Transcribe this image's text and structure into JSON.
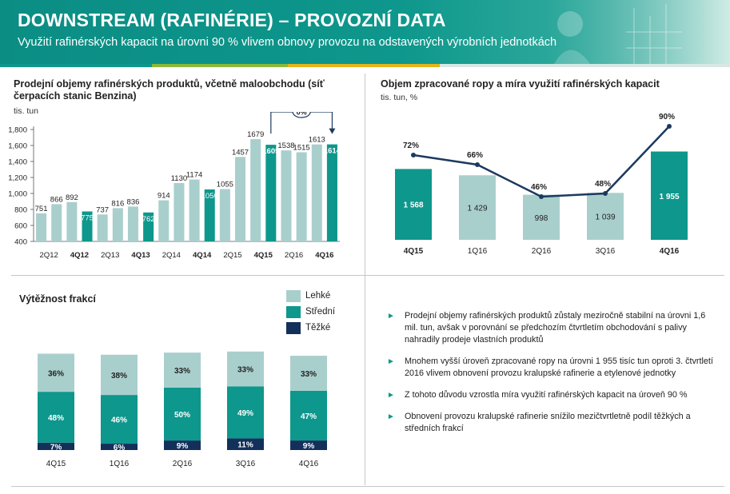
{
  "header": {
    "title": "DOWNSTREAM (RAFINÉRIE) – PROVOZNÍ DATA",
    "subtitle": "Využití rafinérských kapacit na úrovni 90 % vlivem obnovy provozu na odstavených výrobních jednotkách"
  },
  "colors": {
    "teal": "#0e978c",
    "light": "#a9cfcd",
    "navy": "#12305a",
    "line": "#1c3a5f",
    "stripe_green": "#8bb83a",
    "stripe_yellow": "#e6b51c"
  },
  "chart_data": [
    {
      "type": "bar",
      "title": "Prodejní objemy rafinérských produktů, včetně maloobchodu (síť čerpacích stanic Benzina)",
      "ylabel": "tis. tun",
      "ylim": [
        400,
        1800
      ],
      "yticks": [
        "400",
        "600",
        "800",
        "1,000",
        "1,200",
        "1,400",
        "1,600",
        "1,800"
      ],
      "grid": false,
      "values": [
        751,
        866,
        892,
        775,
        737,
        816,
        836,
        762,
        914,
        1130,
        1174,
        1050,
        1055,
        1457,
        1679,
        1609,
        1538,
        1515,
        1613,
        1614
      ],
      "highlight": [
        false,
        false,
        false,
        true,
        false,
        false,
        false,
        true,
        false,
        false,
        false,
        true,
        false,
        false,
        false,
        true,
        false,
        false,
        false,
        true
      ],
      "bold_label": [
        false,
        false,
        false,
        false,
        false,
        false,
        false,
        false,
        false,
        false,
        false,
        false,
        false,
        false,
        false,
        true,
        false,
        false,
        false,
        true
      ],
      "group_labels": [
        "2Q12",
        "4Q12",
        "2Q13",
        "4Q13",
        "2Q14",
        "4Q14",
        "2Q15",
        "4Q15",
        "2Q16",
        "4Q16"
      ],
      "group_bold": [
        false,
        true,
        false,
        true,
        false,
        true,
        false,
        true,
        false,
        true
      ],
      "annotation": "0%"
    },
    {
      "type": "bar",
      "title": "Objem zpracované ropy a míra využití rafinérských kapacit",
      "ylabel": "tis. tun, %",
      "categories": [
        "4Q15",
        "1Q16",
        "2Q16",
        "3Q16",
        "4Q16"
      ],
      "highlight": [
        true,
        false,
        false,
        false,
        true
      ],
      "values": [
        1568,
        1429,
        998,
        1039,
        1955
      ],
      "value_labels": [
        "1 568",
        "1 429",
        "998",
        "1 039",
        "1 955"
      ],
      "line_values": [
        72,
        66,
        46,
        48,
        90
      ],
      "line_labels": [
        "72%",
        "66%",
        "46%",
        "48%",
        "90%"
      ]
    },
    {
      "type": "bar",
      "title": "Výtěžnost frakcí",
      "categories": [
        "4Q15",
        "1Q16",
        "2Q16",
        "3Q16",
        "4Q16"
      ],
      "series": [
        {
          "name": "Lehké",
          "values": [
            36,
            38,
            33,
            33,
            33
          ]
        },
        {
          "name": "Střední",
          "values": [
            48,
            46,
            50,
            49,
            47
          ]
        },
        {
          "name": "Těžké",
          "values": [
            7,
            6,
            9,
            11,
            9
          ]
        }
      ]
    }
  ],
  "bullets": [
    "Prodejní objemy rafinérských produktů zůstaly meziročně stabilní na úrovni 1,6 mil. tun, avšak v porovnání se předchozím čtvrtletím obchodování s palivy nahradily prodeje vlastních produktů",
    "Mnohem vyšší úroveň zpracované ropy na úrovni 1 955 tisíc tun oproti 3. čtvrtletí 2016 vlivem obnovení provozu kralupské rafinerie a etylenové jednotky",
    "Z tohoto důvodu vzrostla míra využití rafinérských kapacit na úroveň 90 %",
    "Obnovení provozu kralupské rafinerie snížilo mezičtvrtletně podíl těžkých a středních frakcí"
  ]
}
